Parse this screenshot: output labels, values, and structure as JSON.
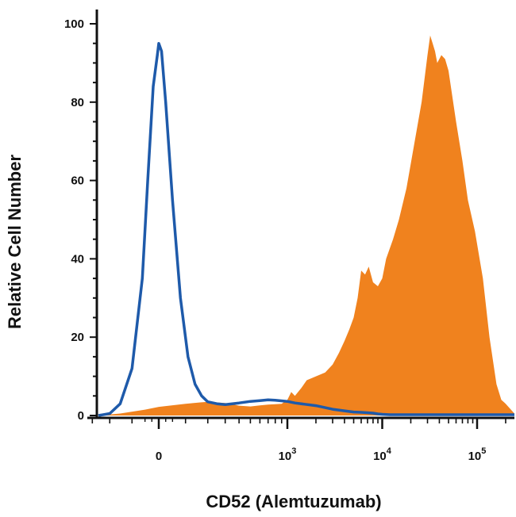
{
  "chart_data": {
    "type": "area",
    "title": "",
    "xlabel": "CD52 (Alemtuzumab)",
    "ylabel": "Relative Cell Number",
    "x_scale": "biexponential",
    "ylim": [
      0,
      100
    ],
    "y_ticks": [
      0,
      20,
      40,
      60,
      80,
      100
    ],
    "x_ticks": [
      {
        "base": "0",
        "exp": ""
      },
      {
        "base": "10",
        "exp": "3"
      },
      {
        "base": "10",
        "exp": "4"
      },
      {
        "base": "10",
        "exp": "5"
      }
    ],
    "grid": false,
    "legend": "none",
    "series": [
      {
        "style": "filled",
        "color": "#F0821E",
        "points": [
          [
            -300,
            0
          ],
          [
            -150,
            0.5
          ],
          [
            -50,
            1.5
          ],
          [
            0,
            2.2
          ],
          [
            100,
            3
          ],
          [
            200,
            3.5
          ],
          [
            300,
            3.2
          ],
          [
            400,
            2.5
          ],
          [
            500,
            2.3
          ],
          [
            600,
            2.6
          ],
          [
            700,
            2.8
          ],
          [
            800,
            2.9
          ],
          [
            900,
            3
          ],
          [
            1000,
            4
          ],
          [
            1100,
            6
          ],
          [
            1200,
            5
          ],
          [
            1400,
            7
          ],
          [
            1600,
            9
          ],
          [
            2000,
            10
          ],
          [
            2500,
            11
          ],
          [
            3000,
            13
          ],
          [
            3500,
            16
          ],
          [
            4000,
            19
          ],
          [
            4500,
            22
          ],
          [
            5000,
            25
          ],
          [
            5500,
            30
          ],
          [
            6000,
            37
          ],
          [
            6600,
            36
          ],
          [
            7200,
            38
          ],
          [
            8000,
            34
          ],
          [
            9000,
            33
          ],
          [
            10000,
            35
          ],
          [
            11000,
            40
          ],
          [
            13000,
            45
          ],
          [
            15000,
            50
          ],
          [
            18000,
            58
          ],
          [
            22000,
            70
          ],
          [
            26000,
            80
          ],
          [
            30000,
            92
          ],
          [
            32000,
            97
          ],
          [
            34000,
            95
          ],
          [
            36000,
            93
          ],
          [
            38000,
            90
          ],
          [
            42000,
            92
          ],
          [
            46000,
            91
          ],
          [
            50000,
            88
          ],
          [
            60000,
            75
          ],
          [
            70000,
            65
          ],
          [
            80000,
            55
          ],
          [
            95000,
            47
          ],
          [
            115000,
            35
          ],
          [
            135000,
            20
          ],
          [
            160000,
            8
          ],
          [
            180000,
            4
          ],
          [
            200000,
            3
          ],
          [
            250000,
            0.5
          ]
        ]
      },
      {
        "style": "line",
        "color": "#1E5AAA",
        "points": [
          [
            -300,
            0
          ],
          [
            -200,
            0.5
          ],
          [
            -150,
            3
          ],
          [
            -100,
            12
          ],
          [
            -60,
            35
          ],
          [
            -40,
            60
          ],
          [
            -20,
            84
          ],
          [
            -5,
            92
          ],
          [
            0,
            95
          ],
          [
            10,
            93
          ],
          [
            25,
            80
          ],
          [
            50,
            55
          ],
          [
            80,
            30
          ],
          [
            110,
            15
          ],
          [
            140,
            8
          ],
          [
            170,
            5
          ],
          [
            200,
            3.5
          ],
          [
            250,
            3
          ],
          [
            300,
            2.8
          ],
          [
            400,
            3.2
          ],
          [
            500,
            3.6
          ],
          [
            600,
            3.8
          ],
          [
            700,
            4
          ],
          [
            800,
            3.9
          ],
          [
            1000,
            3.6
          ],
          [
            1200,
            3.2
          ],
          [
            1500,
            2.9
          ],
          [
            2000,
            2.5
          ],
          [
            2500,
            2
          ],
          [
            3000,
            1.6
          ],
          [
            4000,
            1.2
          ],
          [
            5000,
            0.9
          ],
          [
            6000,
            0.8
          ],
          [
            7000,
            0.7
          ],
          [
            8000,
            0.6
          ],
          [
            9000,
            0.4
          ],
          [
            10000,
            0.3
          ],
          [
            12000,
            0.2
          ],
          [
            20000,
            0.2
          ],
          [
            250000,
            0.2
          ]
        ]
      }
    ]
  }
}
